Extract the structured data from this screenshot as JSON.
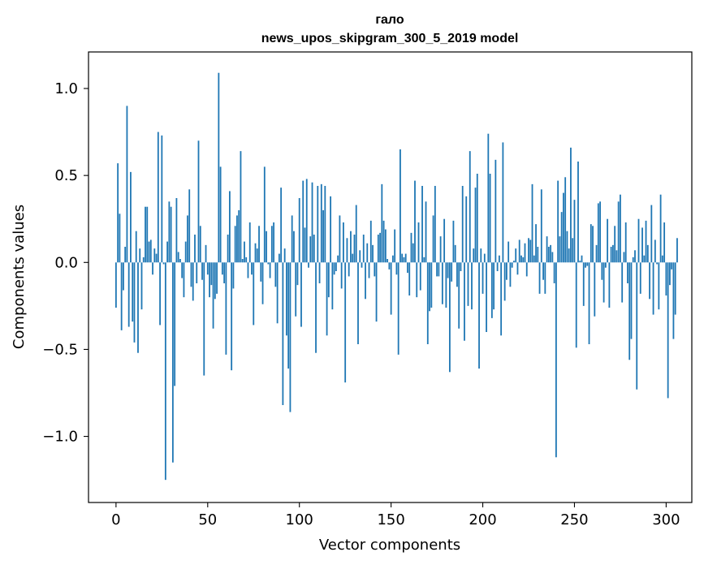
{
  "chart_data": {
    "type": "bar",
    "title": "гало",
    "subtitle": "news_upos_skipgram_300_5_2019 model",
    "xlabel": "Vector components",
    "ylabel": "Components values",
    "xlim": [
      -15,
      314
    ],
    "ylim": [
      -1.38,
      1.21
    ],
    "xticks": [
      0,
      50,
      100,
      150,
      200,
      250,
      300
    ],
    "xtick_labels": [
      "0",
      "50",
      "100",
      "150",
      "200",
      "250",
      "300"
    ],
    "yticks": [
      -1.0,
      -0.5,
      0.0,
      0.5,
      1.0
    ],
    "ytick_labels": [
      "−1.0",
      "−0.5",
      "0.0",
      "0.5",
      "1.0"
    ],
    "bar_color": "#1f77b4",
    "grid": false,
    "values": [
      -0.26,
      0.57,
      0.28,
      -0.39,
      -0.16,
      0.09,
      0.9,
      -0.37,
      0.52,
      -0.34,
      -0.46,
      0.18,
      -0.52,
      0.08,
      -0.27,
      0.03,
      0.32,
      0.32,
      0.12,
      0.13,
      -0.07,
      0.08,
      0.05,
      0.75,
      -0.36,
      0.73,
      -0.01,
      -1.25,
      0.12,
      0.35,
      0.32,
      -1.15,
      -0.71,
      0.37,
      0.06,
      0.02,
      -0.09,
      -0.2,
      0.12,
      0.27,
      0.42,
      -0.14,
      -0.22,
      0.16,
      -0.12,
      0.7,
      0.21,
      -0.1,
      -0.65,
      0.1,
      -0.07,
      -0.2,
      -0.13,
      -0.38,
      -0.21,
      -0.18,
      1.09,
      0.55,
      -0.07,
      -0.12,
      -0.53,
      0.16,
      0.41,
      -0.62,
      -0.15,
      0.21,
      0.27,
      0.3,
      0.64,
      0.02,
      0.12,
      0.03,
      -0.09,
      0.23,
      -0.07,
      -0.36,
      0.11,
      0.08,
      0.21,
      -0.11,
      -0.24,
      0.55,
      0.18,
      -0.01,
      -0.09,
      0.21,
      0.23,
      -0.14,
      -0.35,
      0.05,
      0.43,
      -0.82,
      0.08,
      -0.42,
      -0.61,
      -0.86,
      0.27,
      0.18,
      -0.31,
      -0.13,
      0.37,
      -0.37,
      0.47,
      0.2,
      0.48,
      -0.03,
      0.15,
      0.46,
      0.16,
      -0.52,
      0.44,
      -0.12,
      0.45,
      0.3,
      0.44,
      -0.42,
      -0.2,
      0.38,
      -0.27,
      -0.07,
      -0.05,
      0.04,
      0.27,
      -0.15,
      0.23,
      -0.69,
      0.14,
      -0.08,
      0.18,
      0.05,
      0.16,
      0.33,
      -0.47,
      0.07,
      -0.03,
      0.16,
      -0.21,
      0.11,
      -0.09,
      0.24,
      0.1,
      -0.08,
      -0.34,
      0.16,
      0.17,
      0.45,
      0.24,
      0.19,
      0.02,
      -0.04,
      -0.3,
      0.04,
      0.19,
      -0.07,
      -0.53,
      0.65,
      0.05,
      0.03,
      0.05,
      -0.06,
      -0.19,
      0.17,
      0.11,
      0.47,
      -0.2,
      0.23,
      -0.16,
      0.44,
      0.03,
      0.35,
      -0.47,
      -0.28,
      -0.26,
      0.27,
      0.44,
      -0.08,
      -0.08,
      0.15,
      -0.24,
      0.25,
      -0.26,
      -0.09,
      -0.63,
      -0.11,
      0.24,
      0.1,
      -0.14,
      -0.38,
      -0.05,
      0.44,
      -0.45,
      0.38,
      -0.25,
      0.64,
      -0.27,
      0.08,
      0.43,
      0.51,
      -0.61,
      0.08,
      -0.18,
      0.05,
      -0.4,
      0.74,
      0.51,
      -0.32,
      -0.27,
      0.59,
      -0.05,
      0.04,
      -0.42,
      0.69,
      -0.22,
      -0.1,
      0.12,
      -0.14,
      -0.03,
      0.01,
      0.08,
      -0.07,
      0.13,
      0.04,
      0.03,
      0.11,
      -0.08,
      0.14,
      0.13,
      0.45,
      0.04,
      0.22,
      0.09,
      -0.18,
      0.42,
      -0.1,
      -0.18,
      0.15,
      0.09,
      0.1,
      0.06,
      -0.12,
      -1.12,
      0.47,
      0.15,
      0.29,
      0.4,
      0.49,
      0.18,
      0.08,
      0.66,
      0.14,
      0.36,
      -0.49,
      0.58,
      0.01,
      0.04,
      -0.25,
      -0.03,
      -0.02,
      -0.47,
      0.22,
      0.21,
      -0.31,
      0.1,
      0.34,
      0.35,
      -0.1,
      -0.23,
      -0.03,
      0.25,
      -0.26,
      0.09,
      0.1,
      0.21,
      0.07,
      0.35,
      0.39,
      -0.23,
      0.06,
      0.23,
      -0.12,
      -0.56,
      -0.44,
      0.03,
      0.07,
      -0.73,
      0.25,
      -0.18,
      0.2,
      0.04,
      0.24,
      0.1,
      -0.21,
      0.33,
      -0.3,
      0.13,
      -0.01,
      -0.27,
      0.39,
      0.04,
      0.23,
      -0.19,
      -0.78,
      -0.13,
      -0.04,
      -0.44,
      -0.3,
      0.14
    ]
  }
}
